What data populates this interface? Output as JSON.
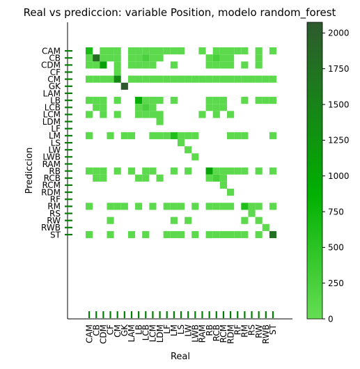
{
  "chart_data": {
    "type": "heatmap",
    "title": "Real vs prediccion: variable Position, modelo random_forest",
    "xlabel": "Real",
    "ylabel": "Prediccion",
    "categories": [
      "CAM",
      "CB",
      "CDM",
      "CF",
      "CM",
      "GK",
      "LAM",
      "LB",
      "LCB",
      "LCM",
      "LDM",
      "LF",
      "LM",
      "LS",
      "LW",
      "LWB",
      "RAM",
      "RB",
      "RCB",
      "RCM",
      "RDM",
      "RF",
      "RM",
      "RS",
      "RW",
      "RWB",
      "ST"
    ],
    "colorbar": {
      "min": 0,
      "max": 2075,
      "ticks": [
        0,
        250,
        500,
        750,
        1000,
        1250,
        1500,
        1750,
        2000
      ]
    },
    "colors": {
      "low": "#66dd55",
      "mid": "#00b000",
      "high": "#2e5a2e",
      "tick_marks": "#008000"
    },
    "cells": [
      {
        "real": "CAM",
        "pred": "CAM",
        "value": 650
      },
      {
        "real": "CDM",
        "pred": "CAM",
        "value": 80
      },
      {
        "real": "CF",
        "pred": "CAM",
        "value": 80
      },
      {
        "real": "CM",
        "pred": "CAM",
        "value": 80
      },
      {
        "real": "LAM",
        "pred": "CAM",
        "value": 80
      },
      {
        "real": "LB",
        "pred": "CAM",
        "value": 80
      },
      {
        "real": "LCB",
        "pred": "CAM",
        "value": 80
      },
      {
        "real": "LCM",
        "pred": "CAM",
        "value": 80
      },
      {
        "real": "LDM",
        "pred": "CAM",
        "value": 80
      },
      {
        "real": "LF",
        "pred": "CAM",
        "value": 80
      },
      {
        "real": "LM",
        "pred": "CAM",
        "value": 80
      },
      {
        "real": "LS",
        "pred": "CAM",
        "value": 80
      },
      {
        "real": "RAM",
        "pred": "CAM",
        "value": 80
      },
      {
        "real": "RCB",
        "pred": "CAM",
        "value": 80
      },
      {
        "real": "RCM",
        "pred": "CAM",
        "value": 80
      },
      {
        "real": "RDM",
        "pred": "CAM",
        "value": 80
      },
      {
        "real": "RF",
        "pred": "CAM",
        "value": 80
      },
      {
        "real": "RM",
        "pred": "CAM",
        "value": 80
      },
      {
        "real": "RW",
        "pred": "CAM",
        "value": 80
      },
      {
        "real": "ST",
        "pred": "CAM",
        "value": 80
      },
      {
        "real": "CAM",
        "pred": "CB",
        "value": 80
      },
      {
        "real": "CB",
        "pred": "CB",
        "value": 1800
      },
      {
        "real": "CDM",
        "pred": "CB",
        "value": 80
      },
      {
        "real": "CF",
        "pred": "CB",
        "value": 80
      },
      {
        "real": "CM",
        "pred": "CB",
        "value": 80
      },
      {
        "real": "LAM",
        "pred": "CB",
        "value": 80
      },
      {
        "real": "LB",
        "pred": "CB",
        "value": 80
      },
      {
        "real": "LCB",
        "pred": "CB",
        "value": 250
      },
      {
        "real": "LCM",
        "pred": "CB",
        "value": 80
      },
      {
        "real": "LDM",
        "pred": "CB",
        "value": 80
      },
      {
        "real": "RB",
        "pred": "CB",
        "value": 80
      },
      {
        "real": "RCB",
        "pred": "CB",
        "value": 250
      },
      {
        "real": "RCM",
        "pred": "CB",
        "value": 80
      },
      {
        "real": "RDM",
        "pred": "CB",
        "value": 80
      },
      {
        "real": "RW",
        "pred": "CB",
        "value": 80
      },
      {
        "real": "CAM",
        "pred": "CDM",
        "value": 80
      },
      {
        "real": "CB",
        "pred": "CDM",
        "value": 80
      },
      {
        "real": "CDM",
        "pred": "CDM",
        "value": 1100
      },
      {
        "real": "CM",
        "pred": "CDM",
        "value": 80
      },
      {
        "real": "LAM",
        "pred": "CDM",
        "value": 80
      },
      {
        "real": "LB",
        "pred": "CDM",
        "value": 80
      },
      {
        "real": "LCB",
        "pred": "CDM",
        "value": 80
      },
      {
        "real": "LCM",
        "pred": "CDM",
        "value": 80
      },
      {
        "real": "LM",
        "pred": "CDM",
        "value": 80
      },
      {
        "real": "RB",
        "pred": "CDM",
        "value": 80
      },
      {
        "real": "RCB",
        "pred": "CDM",
        "value": 80
      },
      {
        "real": "RCM",
        "pred": "CDM",
        "value": 80
      },
      {
        "real": "RDM",
        "pred": "CDM",
        "value": 80
      },
      {
        "real": "RM",
        "pred": "CDM",
        "value": 80
      },
      {
        "real": "RW",
        "pred": "CDM",
        "value": 80
      },
      {
        "real": "CM",
        "pred": "CF",
        "value": 80
      },
      {
        "real": "CAM",
        "pred": "CM",
        "value": 80
      },
      {
        "real": "CB",
        "pred": "CM",
        "value": 80
      },
      {
        "real": "CDM",
        "pred": "CM",
        "value": 80
      },
      {
        "real": "CF",
        "pred": "CM",
        "value": 80
      },
      {
        "real": "CM",
        "pred": "CM",
        "value": 1400
      },
      {
        "real": "LAM",
        "pred": "CM",
        "value": 80
      },
      {
        "real": "LB",
        "pred": "CM",
        "value": 80
      },
      {
        "real": "LCB",
        "pred": "CM",
        "value": 80
      },
      {
        "real": "LCM",
        "pred": "CM",
        "value": 80
      },
      {
        "real": "LDM",
        "pred": "CM",
        "value": 80
      },
      {
        "real": "LF",
        "pred": "CM",
        "value": 80
      },
      {
        "real": "LM",
        "pred": "CM",
        "value": 80
      },
      {
        "real": "LS",
        "pred": "CM",
        "value": 80
      },
      {
        "real": "LW",
        "pred": "CM",
        "value": 80
      },
      {
        "real": "LWB",
        "pred": "CM",
        "value": 80
      },
      {
        "real": "RAM",
        "pred": "CM",
        "value": 80
      },
      {
        "real": "RB",
        "pred": "CM",
        "value": 80
      },
      {
        "real": "RCB",
        "pred": "CM",
        "value": 80
      },
      {
        "real": "RCM",
        "pred": "CM",
        "value": 80
      },
      {
        "real": "RDM",
        "pred": "CM",
        "value": 80
      },
      {
        "real": "RF",
        "pred": "CM",
        "value": 80
      },
      {
        "real": "RM",
        "pred": "CM",
        "value": 80
      },
      {
        "real": "RS",
        "pred": "CM",
        "value": 80
      },
      {
        "real": "RW",
        "pred": "CM",
        "value": 80
      },
      {
        "real": "RWB",
        "pred": "CM",
        "value": 80
      },
      {
        "real": "ST",
        "pred": "CM",
        "value": 80
      },
      {
        "real": "GK",
        "pred": "GK",
        "value": 2075
      },
      {
        "real": "CAM",
        "pred": "LB",
        "value": 80
      },
      {
        "real": "CB",
        "pred": "LB",
        "value": 80
      },
      {
        "real": "CDM",
        "pred": "LB",
        "value": 80
      },
      {
        "real": "CM",
        "pred": "LB",
        "value": 80
      },
      {
        "real": "LB",
        "pred": "LB",
        "value": 900
      },
      {
        "real": "LCB",
        "pred": "LB",
        "value": 80
      },
      {
        "real": "LCM",
        "pred": "LB",
        "value": 80
      },
      {
        "real": "LDM",
        "pred": "LB",
        "value": 80
      },
      {
        "real": "LM",
        "pred": "LB",
        "value": 80
      },
      {
        "real": "RB",
        "pred": "LB",
        "value": 80
      },
      {
        "real": "RCB",
        "pred": "LB",
        "value": 80
      },
      {
        "real": "RCM",
        "pred": "LB",
        "value": 80
      },
      {
        "real": "RM",
        "pred": "LB",
        "value": 80
      },
      {
        "real": "RW",
        "pred": "LB",
        "value": 80
      },
      {
        "real": "RWB",
        "pred": "LB",
        "value": 80
      },
      {
        "real": "ST",
        "pred": "LB",
        "value": 80
      },
      {
        "real": "CB",
        "pred": "LCB",
        "value": 80
      },
      {
        "real": "CDM",
        "pred": "LCB",
        "value": 80
      },
      {
        "real": "LB",
        "pred": "LCB",
        "value": 80
      },
      {
        "real": "LCB",
        "pred": "LCB",
        "value": 250
      },
      {
        "real": "LCM",
        "pred": "LCB",
        "value": 80
      },
      {
        "real": "RB",
        "pred": "LCB",
        "value": 80
      },
      {
        "real": "RCB",
        "pred": "LCB",
        "value": 80
      },
      {
        "real": "RCM",
        "pred": "LCB",
        "value": 80
      },
      {
        "real": "CAM",
        "pred": "LCM",
        "value": 80
      },
      {
        "real": "CDM",
        "pred": "LCM",
        "value": 80
      },
      {
        "real": "CM",
        "pred": "LCM",
        "value": 80
      },
      {
        "real": "LB",
        "pred": "LCM",
        "value": 80
      },
      {
        "real": "LCB",
        "pred": "LCM",
        "value": 80
      },
      {
        "real": "LCM",
        "pred": "LCM",
        "value": 80
      },
      {
        "real": "LDM",
        "pred": "LCM",
        "value": 80
      },
      {
        "real": "RAM",
        "pred": "LCM",
        "value": 80
      },
      {
        "real": "RCB",
        "pred": "LCM",
        "value": 80
      },
      {
        "real": "RDM",
        "pred": "LCM",
        "value": 80
      },
      {
        "real": "LDM",
        "pred": "LDM",
        "value": 80
      },
      {
        "real": "CAM",
        "pred": "LM",
        "value": 80
      },
      {
        "real": "CF",
        "pred": "LM",
        "value": 80
      },
      {
        "real": "GK",
        "pred": "LM",
        "value": 80
      },
      {
        "real": "LAM",
        "pred": "LM",
        "value": 80
      },
      {
        "real": "LCM",
        "pred": "LM",
        "value": 80
      },
      {
        "real": "LDM",
        "pred": "LM",
        "value": 80
      },
      {
        "real": "LF",
        "pred": "LM",
        "value": 80
      },
      {
        "real": "LM",
        "pred": "LM",
        "value": 600
      },
      {
        "real": "LS",
        "pred": "LM",
        "value": 80
      },
      {
        "real": "LW",
        "pred": "LM",
        "value": 80
      },
      {
        "real": "LWB",
        "pred": "LM",
        "value": 80
      },
      {
        "real": "RDM",
        "pred": "LM",
        "value": 80
      },
      {
        "real": "RF",
        "pred": "LM",
        "value": 80
      },
      {
        "real": "RM",
        "pred": "LM",
        "value": 80
      },
      {
        "real": "ST",
        "pred": "LM",
        "value": 80
      },
      {
        "real": "LS",
        "pred": "LS",
        "value": 80
      },
      {
        "real": "LW",
        "pred": "LW",
        "value": 80
      },
      {
        "real": "LWB",
        "pred": "LWB",
        "value": 80
      },
      {
        "real": "CAM",
        "pred": "RB",
        "value": 80
      },
      {
        "real": "CB",
        "pred": "RB",
        "value": 80
      },
      {
        "real": "CDM",
        "pred": "RB",
        "value": 80
      },
      {
        "real": "CM",
        "pred": "RB",
        "value": 80
      },
      {
        "real": "LAM",
        "pred": "RB",
        "value": 80
      },
      {
        "real": "LCB",
        "pred": "RB",
        "value": 80
      },
      {
        "real": "LCM",
        "pred": "RB",
        "value": 80
      },
      {
        "real": "LM",
        "pred": "RB",
        "value": 80
      },
      {
        "real": "LW",
        "pred": "RB",
        "value": 80
      },
      {
        "real": "RB",
        "pred": "RB",
        "value": 1050
      },
      {
        "real": "RCB",
        "pred": "RB",
        "value": 80
      },
      {
        "real": "RCM",
        "pred": "RB",
        "value": 80
      },
      {
        "real": "RDM",
        "pred": "RB",
        "value": 80
      },
      {
        "real": "RF",
        "pred": "RB",
        "value": 80
      },
      {
        "real": "RM",
        "pred": "RB",
        "value": 80
      },
      {
        "real": "RW",
        "pred": "RB",
        "value": 80
      },
      {
        "real": "ST",
        "pred": "RB",
        "value": 80
      },
      {
        "real": "CB",
        "pred": "RCB",
        "value": 80
      },
      {
        "real": "CDM",
        "pred": "RCB",
        "value": 80
      },
      {
        "real": "LB",
        "pred": "RCB",
        "value": 80
      },
      {
        "real": "LCB",
        "pred": "RCB",
        "value": 80
      },
      {
        "real": "LDM",
        "pred": "RCB",
        "value": 80
      },
      {
        "real": "RB",
        "pred": "RCB",
        "value": 80
      },
      {
        "real": "RCB",
        "pred": "RCB",
        "value": 250
      },
      {
        "real": "RCM",
        "pred": "RCB",
        "value": 80
      },
      {
        "real": "RCM",
        "pred": "RCM",
        "value": 80
      },
      {
        "real": "RDM",
        "pred": "RDM",
        "value": 80
      },
      {
        "real": "CAM",
        "pred": "RM",
        "value": 80
      },
      {
        "real": "CF",
        "pred": "RM",
        "value": 80
      },
      {
        "real": "CM",
        "pred": "RM",
        "value": 80
      },
      {
        "real": "GK",
        "pred": "RM",
        "value": 80
      },
      {
        "real": "LB",
        "pred": "RM",
        "value": 80
      },
      {
        "real": "LCM",
        "pred": "RM",
        "value": 80
      },
      {
        "real": "LF",
        "pred": "RM",
        "value": 80
      },
      {
        "real": "LM",
        "pred": "RM",
        "value": 80
      },
      {
        "real": "LS",
        "pred": "RM",
        "value": 80
      },
      {
        "real": "LWB",
        "pred": "RM",
        "value": 80
      },
      {
        "real": "RB",
        "pred": "RM",
        "value": 80
      },
      {
        "real": "RCB",
        "pred": "RM",
        "value": 80
      },
      {
        "real": "RCM",
        "pred": "RM",
        "value": 80
      },
      {
        "real": "RDM",
        "pred": "RM",
        "value": 80
      },
      {
        "real": "RM",
        "pred": "RM",
        "value": 600
      },
      {
        "real": "RS",
        "pred": "RM",
        "value": 80
      },
      {
        "real": "RW",
        "pred": "RM",
        "value": 80
      },
      {
        "real": "ST",
        "pred": "RM",
        "value": 80
      },
      {
        "real": "RS",
        "pred": "RS",
        "value": 80
      },
      {
        "real": "CF",
        "pred": "RW",
        "value": 80
      },
      {
        "real": "LM",
        "pred": "RW",
        "value": 80
      },
      {
        "real": "LW",
        "pred": "RW",
        "value": 80
      },
      {
        "real": "RM",
        "pred": "RW",
        "value": 80
      },
      {
        "real": "RW",
        "pred": "RW",
        "value": 80
      },
      {
        "real": "RWB",
        "pred": "RWB",
        "value": 80
      },
      {
        "real": "CAM",
        "pred": "ST",
        "value": 80
      },
      {
        "real": "CF",
        "pred": "ST",
        "value": 80
      },
      {
        "real": "LAM",
        "pred": "ST",
        "value": 80
      },
      {
        "real": "LCB",
        "pred": "ST",
        "value": 80
      },
      {
        "real": "LF",
        "pred": "ST",
        "value": 80
      },
      {
        "real": "LM",
        "pred": "ST",
        "value": 80
      },
      {
        "real": "LS",
        "pred": "ST",
        "value": 80
      },
      {
        "real": "LWB",
        "pred": "ST",
        "value": 80
      },
      {
        "real": "RB",
        "pred": "ST",
        "value": 80
      },
      {
        "real": "RCB",
        "pred": "ST",
        "value": 80
      },
      {
        "real": "RCM",
        "pred": "ST",
        "value": 80
      },
      {
        "real": "RDM",
        "pred": "ST",
        "value": 80
      },
      {
        "real": "RF",
        "pred": "ST",
        "value": 80
      },
      {
        "real": "RM",
        "pred": "ST",
        "value": 80
      },
      {
        "real": "RW",
        "pred": "ST",
        "value": 80
      },
      {
        "real": "ST",
        "pred": "ST",
        "value": 1750
      }
    ]
  }
}
